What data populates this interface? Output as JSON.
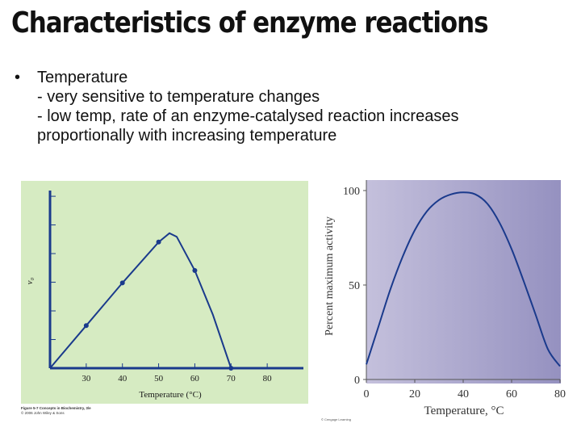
{
  "slide": {
    "title": "Characteristics of enzyme reactions",
    "bullet": "Temperature",
    "line1": "- very sensitive to temperature changes",
    "line2": "- low temp, rate of an enzyme-catalysed reaction increases",
    "line3": "proportionally with increasing temperature"
  },
  "left_figure": {
    "caption_line1": "Figure 5-7  Concepts in Biochemistry, 3/e",
    "caption_line2": "© 2006 John Wiley & Sons",
    "colors": {
      "background": "#d6ebc2",
      "line": "#1a3a8c",
      "axis": "#1a3a8c"
    }
  },
  "right_figure": {
    "credit": "© Cengage Learning",
    "colors": {
      "gradient_start": "#c4c0dc",
      "gradient_end": "#9591c0",
      "curve": "#1a3a8c"
    }
  },
  "chart_data": [
    {
      "type": "line",
      "title": "",
      "xlabel": "Temperature (°C)",
      "ylabel": "v0",
      "x_ticks": [
        30,
        40,
        50,
        60,
        70,
        80
      ],
      "xlim": [
        20,
        90
      ],
      "ylim": [
        0,
        1
      ],
      "grid": false,
      "series": [
        {
          "x": [
            20,
            30,
            40,
            50,
            53,
            55,
            60,
            65,
            70
          ],
          "y": [
            0.0,
            0.24,
            0.48,
            0.71,
            0.76,
            0.74,
            0.55,
            0.3,
            0.0
          ],
          "markers_x": [
            30,
            40,
            50,
            60,
            70
          ],
          "markers_y": [
            0.24,
            0.48,
            0.71,
            0.55,
            0.0
          ]
        }
      ]
    },
    {
      "type": "line",
      "title": "",
      "xlabel": "Temperature, °C",
      "ylabel": "Percent maximum activity",
      "x_ticks": [
        "0",
        "20",
        "40",
        "60",
        "80"
      ],
      "y_ticks": [
        "0",
        "50",
        "100"
      ],
      "xlim": [
        0,
        80
      ],
      "ylim": [
        0,
        100
      ],
      "grid": false,
      "series": [
        {
          "x": [
            0,
            5,
            10,
            15,
            20,
            25,
            30,
            35,
            40,
            45,
            50,
            55,
            60,
            65,
            70,
            75,
            80
          ],
          "y": [
            8,
            28,
            48,
            65,
            79,
            89,
            95,
            98,
            99,
            98,
            93,
            83,
            69,
            52,
            34,
            16,
            7
          ]
        }
      ]
    }
  ]
}
